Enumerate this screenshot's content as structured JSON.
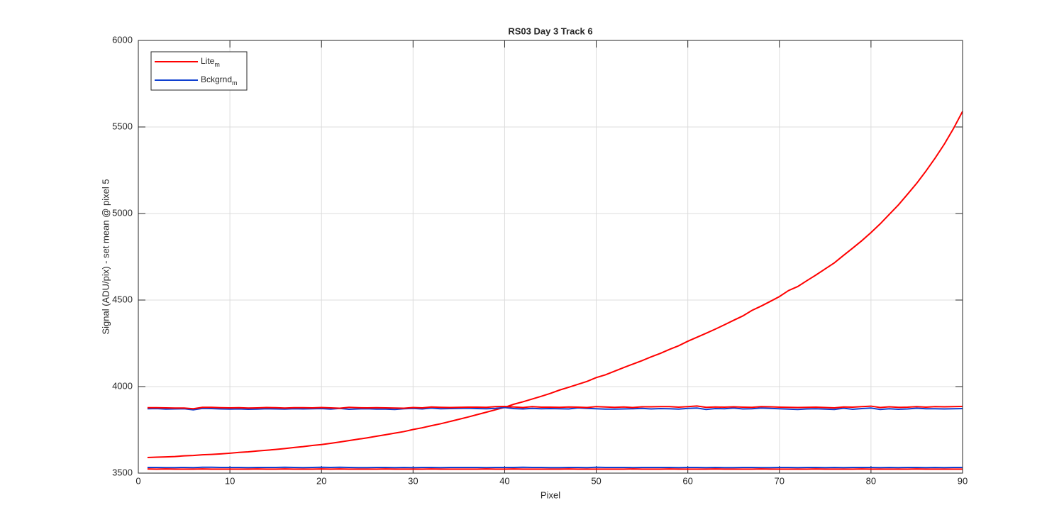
{
  "chart_data": {
    "type": "line",
    "title": "RS03 Day 3 Track 6",
    "xlabel": "Pixel",
    "ylabel": "Signal (ADU/pix) - set mean @ pixel 5",
    "x": [
      1,
      2,
      3,
      4,
      5,
      6,
      7,
      8,
      9,
      10,
      11,
      12,
      13,
      14,
      15,
      16,
      17,
      18,
      19,
      20,
      21,
      22,
      23,
      24,
      25,
      26,
      27,
      28,
      29,
      30,
      31,
      32,
      33,
      34,
      35,
      36,
      37,
      38,
      39,
      40,
      41,
      42,
      43,
      44,
      45,
      46,
      47,
      48,
      49,
      50,
      51,
      52,
      53,
      54,
      55,
      56,
      57,
      58,
      59,
      60,
      61,
      62,
      63,
      64,
      65,
      66,
      67,
      68,
      69,
      70,
      71,
      72,
      73,
      74,
      75,
      76,
      77,
      78,
      79,
      80,
      81,
      82,
      83,
      84,
      85,
      86,
      87,
      88,
      89,
      90
    ],
    "series": [
      {
        "name": "Lite_m",
        "color": "#ff0000",
        "values": [
          3590,
          3592,
          3594,
          3596,
          3600,
          3602,
          3606,
          3608,
          3611,
          3615,
          3620,
          3623,
          3628,
          3632,
          3637,
          3642,
          3648,
          3653,
          3660,
          3665,
          3672,
          3680,
          3688,
          3696,
          3704,
          3713,
          3722,
          3731,
          3740,
          3752,
          3762,
          3774,
          3785,
          3798,
          3811,
          3824,
          3838,
          3852,
          3866,
          3880,
          3898,
          3912,
          3928,
          3944,
          3961,
          3980,
          3996,
          4013,
          4030,
          4052,
          4068,
          4089,
          4110,
          4130,
          4150,
          4172,
          4192,
          4215,
          4236,
          4262,
          4285,
          4308,
          4332,
          4357,
          4383,
          4408,
          4440,
          4465,
          4492,
          4520,
          4555,
          4578,
          4612,
          4645,
          4680,
          4715,
          4758,
          4800,
          4843,
          4890,
          4940,
          4995,
          5050,
          5112,
          5175,
          5245,
          5320,
          5400,
          5490,
          5590
        ]
      },
      {
        "name": "Bckgrnd_m",
        "color": "#1040d0",
        "values": [
          3872,
          3873,
          3870,
          3871,
          3872,
          3866,
          3874,
          3873,
          3871,
          3870,
          3871,
          3869,
          3870,
          3872,
          3871,
          3870,
          3872,
          3871,
          3872,
          3873,
          3870,
          3874,
          3869,
          3871,
          3872,
          3870,
          3870,
          3868,
          3872,
          3874,
          3871,
          3876,
          3872,
          3873,
          3874,
          3875,
          3873,
          3872,
          3874,
          3879,
          3873,
          3871,
          3874,
          3872,
          3873,
          3872,
          3871,
          3877,
          3874,
          3872,
          3870,
          3870,
          3871,
          3872,
          3874,
          3871,
          3873,
          3872,
          3870,
          3874,
          3876,
          3868,
          3873,
          3872,
          3876,
          3871,
          3872,
          3876,
          3874,
          3872,
          3870,
          3868,
          3871,
          3872,
          3870,
          3868,
          3875,
          3869,
          3873,
          3876,
          3868,
          3872,
          3869,
          3871,
          3875,
          3872,
          3872,
          3871,
          3872,
          3873
        ]
      },
      {
        "color": "#ff0000",
        "values": [
          3878,
          3878,
          3877,
          3876,
          3876,
          3872,
          3880,
          3880,
          3878,
          3877,
          3878,
          3876,
          3877,
          3879,
          3878,
          3876,
          3878,
          3878,
          3877,
          3879,
          3877,
          3875,
          3880,
          3878,
          3877,
          3878,
          3877,
          3876,
          3875,
          3879,
          3877,
          3882,
          3880,
          3879,
          3880,
          3881,
          3881,
          3880,
          3884,
          3885,
          3882,
          3879,
          3884,
          3881,
          3881,
          3880,
          3882,
          3881,
          3879,
          3884,
          3882,
          3880,
          3882,
          3879,
          3883,
          3883,
          3884,
          3884,
          3881,
          3884,
          3888,
          3880,
          3882,
          3881,
          3883,
          3881,
          3880,
          3884,
          3883,
          3881,
          3880,
          3879,
          3880,
          3881,
          3879,
          3877,
          3882,
          3881,
          3884,
          3887,
          3879,
          3883,
          3880,
          3881,
          3884,
          3881,
          3884,
          3883,
          3884,
          3885
        ]
      },
      {
        "color": "#1040d0",
        "values": [
          3533,
          3533,
          3532,
          3532,
          3533,
          3532,
          3534,
          3534,
          3533,
          3533,
          3533,
          3532,
          3533,
          3533,
          3533,
          3534,
          3533,
          3532,
          3533,
          3534,
          3533,
          3534,
          3533,
          3532,
          3532,
          3533,
          3533,
          3532,
          3533,
          3532,
          3533,
          3533,
          3532,
          3533,
          3533,
          3533,
          3533,
          3532,
          3533,
          3533,
          3533,
          3534,
          3533,
          3533,
          3532,
          3532,
          3533,
          3533,
          3532,
          3534,
          3533,
          3533,
          3533,
          3532,
          3533,
          3533,
          3533,
          3533,
          3532,
          3533,
          3533,
          3532,
          3533,
          3532,
          3532,
          3533,
          3533,
          3532,
          3532,
          3533,
          3533,
          3532,
          3533,
          3533,
          3532,
          3533,
          3532,
          3533,
          3533,
          3533,
          3532,
          3533,
          3532,
          3533,
          3533,
          3532,
          3533,
          3532,
          3533,
          3533
        ]
      },
      {
        "color": "#ff0000",
        "values": [
          3524,
          3523,
          3524,
          3523,
          3523,
          3523,
          3524,
          3523,
          3523,
          3523,
          3523,
          3523,
          3524,
          3523,
          3523,
          3524,
          3523,
          3523,
          3523,
          3524,
          3523,
          3524,
          3523,
          3523,
          3523,
          3523,
          3524,
          3523,
          3523,
          3523,
          3523,
          3524,
          3523,
          3523,
          3523,
          3523,
          3523,
          3524,
          3523,
          3523,
          3524,
          3523,
          3523,
          3523,
          3523,
          3523,
          3524,
          3523,
          3523,
          3523,
          3523,
          3523,
          3523,
          3524,
          3523,
          3523,
          3523,
          3524,
          3523,
          3523,
          3523,
          3523,
          3524,
          3523,
          3523,
          3523,
          3523,
          3524,
          3523,
          3523,
          3523,
          3523,
          3523,
          3524,
          3523,
          3523,
          3523,
          3523,
          3524,
          3523,
          3523,
          3523,
          3523,
          3523,
          3524,
          3523,
          3523,
          3523,
          3523,
          3523
        ]
      }
    ],
    "xlim": [
      0,
      90
    ],
    "xticks": [
      0,
      10,
      20,
      30,
      40,
      50,
      60,
      70,
      80,
      90
    ],
    "ylim": [
      3500,
      6000
    ],
    "yticks": [
      3500,
      4000,
      4500,
      5000,
      5500,
      6000
    ],
    "grid": true,
    "legend_location": "northwest"
  }
}
